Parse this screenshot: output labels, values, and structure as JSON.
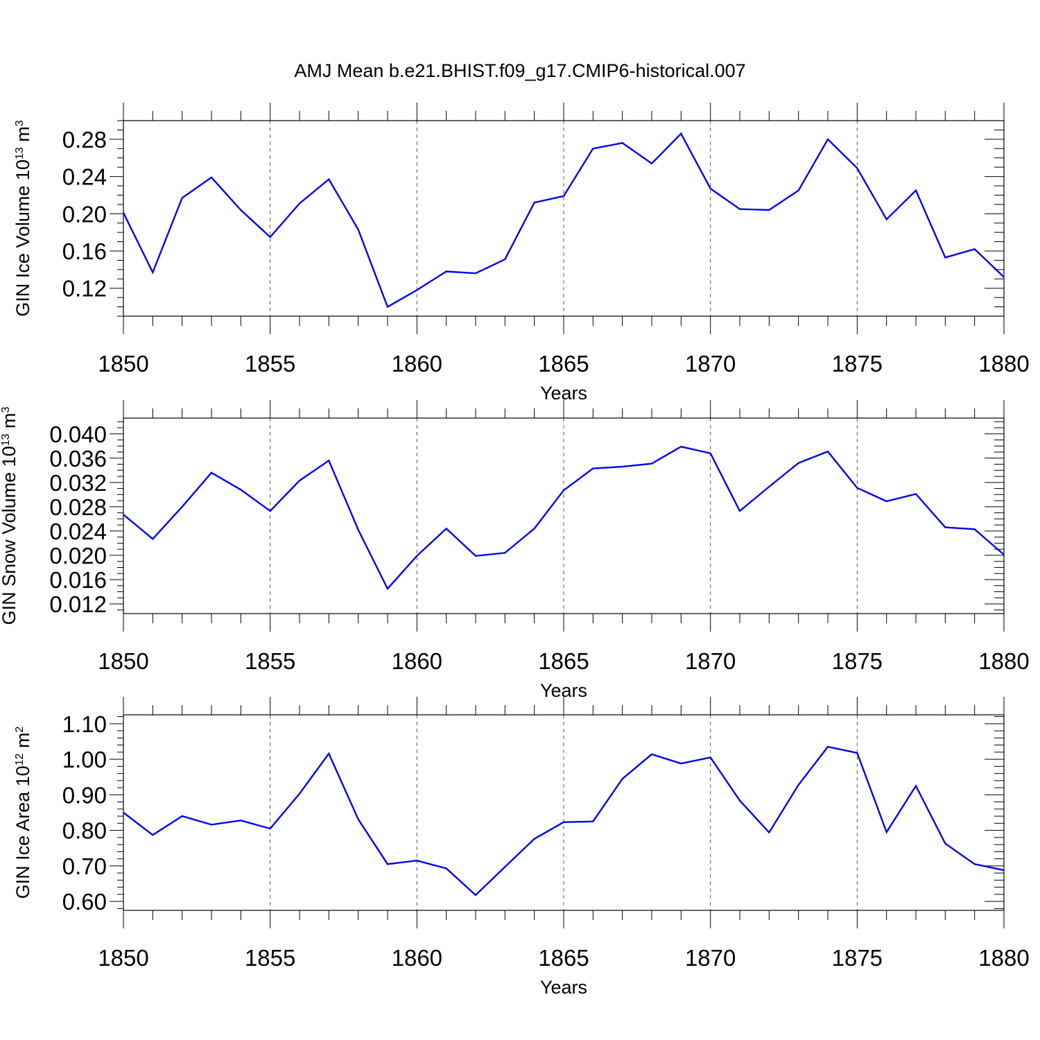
{
  "page_title": "AMJ Mean b.e21.BHIST.f09_g17.CMIP6-historical.007",
  "colors": {
    "series": "#0000ee",
    "axes": "#000000",
    "grid": "#555555"
  },
  "chart_data": [
    {
      "type": "line",
      "ylabel": {
        "main": "GIN Ice Volume 10",
        "exp1": "13",
        "mid": " m",
        "exp2": "3"
      },
      "xlabel": "Years",
      "xlim": [
        1850,
        1880
      ],
      "ylim": [
        0.09,
        0.3
      ],
      "x_ticks": [
        "1850",
        "1855",
        "1860",
        "1865",
        "1870",
        "1875",
        "1880"
      ],
      "y_ticks": [
        "0.12",
        "0.16",
        "0.20",
        "0.24",
        "0.28"
      ],
      "y_tick_values": [
        0.12,
        0.16,
        0.2,
        0.24,
        0.28
      ],
      "y_minor_step": 0.01,
      "grid_x": true,
      "x": [
        1850,
        1851,
        1852,
        1853,
        1854,
        1855,
        1856,
        1857,
        1858,
        1859,
        1860,
        1861,
        1862,
        1863,
        1864,
        1865,
        1866,
        1867,
        1868,
        1869,
        1870,
        1871,
        1872,
        1873,
        1874,
        1875,
        1876,
        1877,
        1878,
        1879,
        1880
      ],
      "values": [
        0.201,
        0.137,
        0.217,
        0.239,
        0.204,
        0.175,
        0.211,
        0.237,
        0.183,
        0.1,
        0.118,
        0.138,
        0.136,
        0.151,
        0.212,
        0.219,
        0.27,
        0.276,
        0.254,
        0.286,
        0.227,
        0.205,
        0.204,
        0.225,
        0.28,
        0.249,
        0.194,
        0.225,
        0.153,
        0.162,
        0.132
      ]
    },
    {
      "type": "line",
      "ylabel": {
        "main": "GIN Snow Volume 10",
        "exp1": "13",
        "mid": " m",
        "exp2": "3"
      },
      "xlabel": "Years",
      "xlim": [
        1850,
        1880
      ],
      "ylim": [
        0.0104,
        0.0426
      ],
      "x_ticks": [
        "1850",
        "1855",
        "1860",
        "1865",
        "1870",
        "1875",
        "1880"
      ],
      "y_ticks": [
        "0.012",
        "0.016",
        "0.020",
        "0.024",
        "0.028",
        "0.032",
        "0.036",
        "0.040"
      ],
      "y_tick_values": [
        0.012,
        0.016,
        0.02,
        0.024,
        0.028,
        0.032,
        0.036,
        0.04
      ],
      "y_minor_step": 0.001,
      "grid_x": true,
      "x": [
        1850,
        1851,
        1852,
        1853,
        1854,
        1855,
        1856,
        1857,
        1858,
        1859,
        1860,
        1861,
        1862,
        1863,
        1864,
        1865,
        1866,
        1867,
        1868,
        1869,
        1870,
        1871,
        1872,
        1873,
        1874,
        1875,
        1876,
        1877,
        1878,
        1879,
        1880
      ],
      "values": [
        0.0267,
        0.0227,
        0.028,
        0.0336,
        0.0308,
        0.0273,
        0.0323,
        0.0356,
        0.0242,
        0.0145,
        0.0199,
        0.0244,
        0.0199,
        0.0204,
        0.0244,
        0.0307,
        0.0343,
        0.0346,
        0.0351,
        0.0379,
        0.0368,
        0.0273,
        0.0313,
        0.0352,
        0.0371,
        0.0311,
        0.0289,
        0.0301,
        0.0246,
        0.0243,
        0.0201
      ]
    },
    {
      "type": "line",
      "ylabel": {
        "main": "GIN Ice Area 10",
        "exp1": "12",
        "mid": " m",
        "exp2": "2"
      },
      "xlabel": "Years",
      "xlim": [
        1850,
        1880
      ],
      "ylim": [
        0.575,
        1.125
      ],
      "x_ticks": [
        "1850",
        "1855",
        "1860",
        "1865",
        "1870",
        "1875",
        "1880"
      ],
      "y_ticks": [
        "0.60",
        "0.70",
        "0.80",
        "0.90",
        "1.00",
        "1.10"
      ],
      "y_tick_values": [
        0.6,
        0.7,
        0.8,
        0.9,
        1.0,
        1.1
      ],
      "y_minor_step": 0.02,
      "grid_x": true,
      "x": [
        1850,
        1851,
        1852,
        1853,
        1854,
        1855,
        1856,
        1857,
        1858,
        1859,
        1860,
        1861,
        1862,
        1863,
        1864,
        1865,
        1866,
        1867,
        1868,
        1869,
        1870,
        1871,
        1872,
        1873,
        1874,
        1875,
        1876,
        1877,
        1878,
        1879,
        1880
      ],
      "values": [
        0.85,
        0.787,
        0.84,
        0.816,
        0.828,
        0.805,
        0.903,
        1.016,
        0.831,
        0.705,
        0.715,
        0.693,
        0.618,
        0.697,
        0.776,
        0.823,
        0.825,
        0.945,
        1.014,
        0.988,
        1.005,
        0.884,
        0.794,
        0.928,
        1.035,
        1.018,
        0.795,
        0.925,
        0.763,
        0.705,
        0.688
      ]
    }
  ]
}
